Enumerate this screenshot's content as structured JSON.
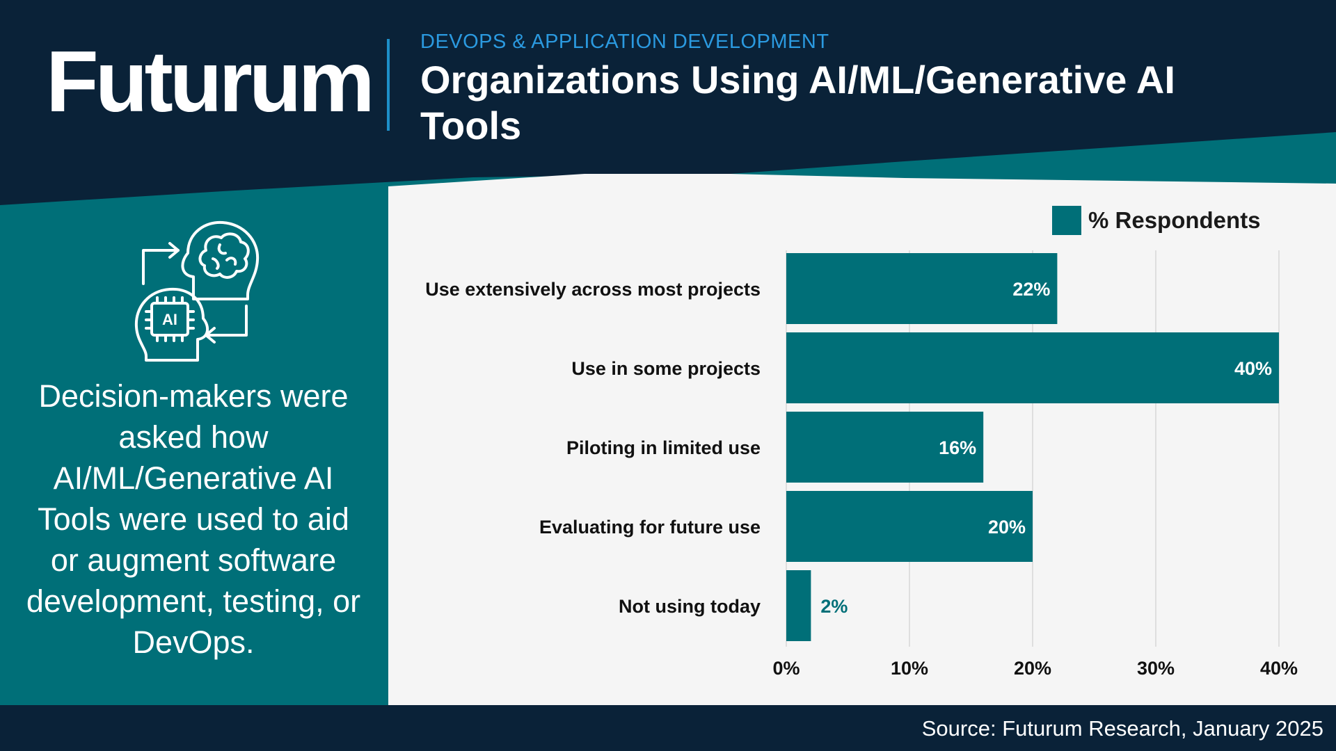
{
  "brand": {
    "logo_text": "Futurum",
    "category": "DEVOPS & APPLICATION DEVELOPMENT",
    "title": "Organizations Using AI/ML/Generative AI Tools"
  },
  "sidebar": {
    "icon": "ai-brain-exchange-icon",
    "description": "Decision-makers were asked how AI/ML/Generative AI Tools were used to aid or augment software development, testing, or DevOps."
  },
  "footer": {
    "source": "Source: Futurum Research, January 2025"
  },
  "colors": {
    "navy": "#0a2238",
    "teal": "#006f78",
    "chart_bg": "#f5f5f5",
    "accent_blue": "#2b9ae0"
  },
  "chart_data": {
    "type": "bar",
    "orientation": "horizontal",
    "categories": [
      "Use extensively across most projects",
      "Use in some projects",
      "Piloting in limited use",
      "Evaluating for future use",
      "Not using today"
    ],
    "series": [
      {
        "name": "% Respondents",
        "values": [
          22,
          40,
          16,
          20,
          2
        ],
        "color": "#006f78"
      }
    ],
    "data_labels": [
      "22%",
      "40%",
      "16%",
      "20%",
      "2%"
    ],
    "xlim": [
      0,
      40
    ],
    "xticks": [
      0,
      10,
      20,
      30,
      40
    ],
    "xtick_labels": [
      "0%",
      "10%",
      "20%",
      "30%",
      "40%"
    ],
    "grid": true,
    "legend": "top-right",
    "title": "",
    "xlabel": "",
    "ylabel": ""
  }
}
